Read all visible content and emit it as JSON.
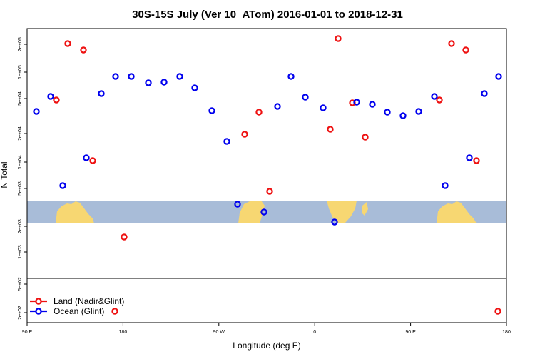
{
  "chart_data": {
    "type": "scatter",
    "title": "30S-15S July (Ver 10_ATom)   2016-01-01 to 2018-12-31",
    "xlabel": "Longitude (deg E)",
    "ylabel": "N Total",
    "x_axis": {
      "range": [
        90,
        450
      ],
      "ticks": [
        {
          "value": 90,
          "label": "90 E"
        },
        {
          "value": 180,
          "label": "180"
        },
        {
          "value": 270,
          "label": "90 W"
        },
        {
          "value": 360,
          "label": "0"
        },
        {
          "value": 450,
          "label": "90 E"
        },
        {
          "value": 540,
          "label": "180"
        }
      ]
    },
    "y_axis": {
      "scale": "log",
      "range": [
        200,
        250000
      ],
      "ticks": [
        {
          "value": 200000,
          "label": "2e+05"
        },
        {
          "value": 100000,
          "label": "1e+05"
        },
        {
          "value": 50000,
          "label": "5e+04"
        },
        {
          "value": 20000,
          "label": "2e+04"
        },
        {
          "value": 10000,
          "label": "1e+04"
        },
        {
          "value": 5000,
          "label": "5e+03"
        },
        {
          "value": 2000,
          "label": "2e+03"
        },
        {
          "value": 1000,
          "label": "1e+03"
        },
        {
          "value": 500,
          "label": "5e+02"
        },
        {
          "value": 200,
          "label": "2e+02"
        }
      ]
    },
    "series": [
      {
        "name": "Land (Nadir&Glint)",
        "color": "#ee1111",
        "x": [
          113,
          121,
          133,
          140,
          154,
          180,
          218,
          230,
          234,
          268,
          272,
          278,
          290,
          291,
          308,
          320,
          332,
          355,
          372,
          377,
          382,
          402,
          411,
          428,
          434
        ],
        "y": [
          50000,
          200000,
          180000,
          10000,
          1800,
          200,
          200,
          40000,
          200,
          48000,
          18000,
          46000,
          4200,
          200,
          200,
          10000,
          50000,
          10000,
          200,
          50000,
          180000,
          200000,
          50000,
          10000,
          210
        ]
      },
      {
        "name": "Ocean (Glint)",
        "color": "#0000ee",
        "x": [
          110,
          126,
          132,
          138,
          143,
          147,
          158,
          162,
          171,
          178,
          182,
          200,
          205,
          213,
          216,
          232,
          243,
          248,
          260,
          270,
          281,
          292,
          310,
          326,
          339
        ],
        "y": [
          59000,
          200000,
          80000,
          250,
          5000,
          59000,
          90000,
          87000,
          78000,
          67000,
          51000,
          75000,
          49000,
          45000,
          49000,
          48000,
          48000,
          10000,
          47000,
          43000,
          44000,
          50000,
          200000,
          42000,
          10000
        ]
      }
    ],
    "legend": {
      "position": "bottom-left",
      "entries": [
        "Land (Nadir&Glint)",
        "Ocean (Glint)"
      ]
    },
    "grid": false
  }
}
